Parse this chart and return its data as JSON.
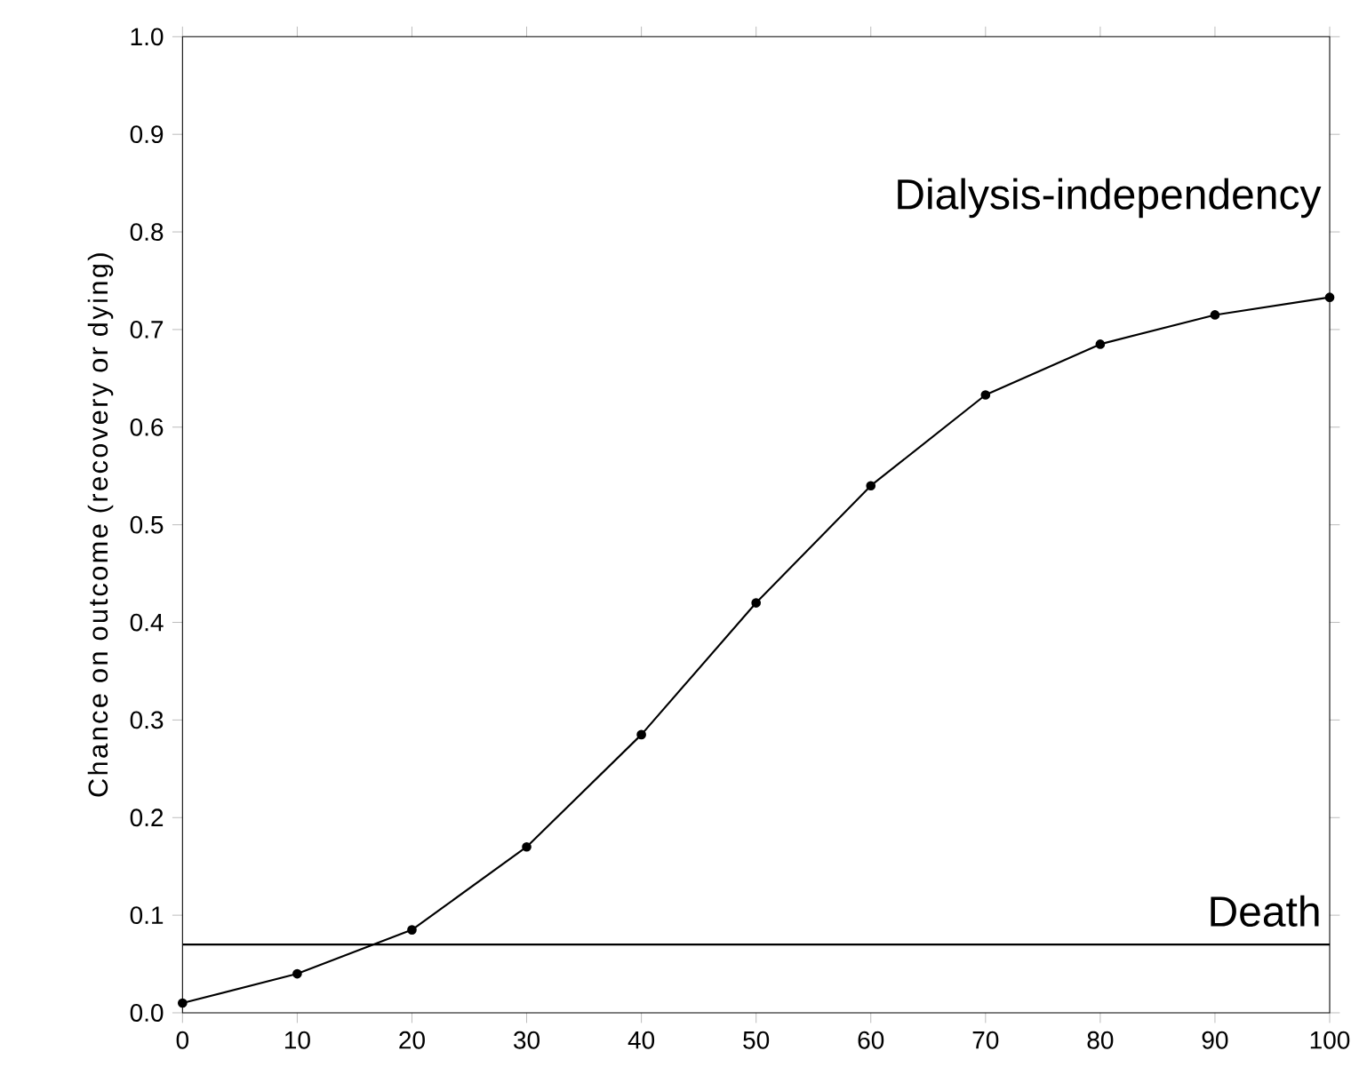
{
  "chart_data": {
    "type": "line",
    "ylabel": "Chance on outcome (recovery or dying)",
    "x": [
      0,
      10,
      20,
      30,
      40,
      50,
      60,
      70,
      80,
      90,
      100
    ],
    "series": [
      {
        "name": "Dialysis-independency",
        "color": "#000000",
        "marker": "circle",
        "values": [
          0.01,
          0.04,
          0.085,
          0.17,
          0.285,
          0.42,
          0.54,
          0.633,
          0.685,
          0.715,
          0.733
        ]
      },
      {
        "name": "Death",
        "color": "#000000",
        "marker": "none",
        "values": [
          0.07,
          0.07,
          0.07,
          0.07,
          0.07,
          0.07,
          0.07,
          0.07,
          0.07,
          0.07,
          0.07
        ]
      }
    ],
    "xlim": [
      0,
      100
    ],
    "ylim": [
      0,
      1
    ],
    "xticks": [
      0,
      10,
      20,
      30,
      40,
      50,
      60,
      70,
      80,
      90,
      100
    ],
    "yticks": [
      {
        "value": 0,
        "label": "0.0"
      },
      {
        "value": 0.1,
        "label": "0.1"
      },
      {
        "value": 0.2,
        "label": "0.2"
      },
      {
        "value": 0.3,
        "label": "0.3"
      },
      {
        "value": 0.4,
        "label": "0.4"
      },
      {
        "value": 0.5,
        "label": "0.5"
      },
      {
        "value": 0.6,
        "label": "0.6"
      },
      {
        "value": 0.7,
        "label": "0.7"
      },
      {
        "value": 0.8,
        "label": "0.8"
      },
      {
        "value": 0.9,
        "label": "0.9"
      },
      {
        "value": 1,
        "label": "1.0"
      }
    ],
    "grid": false,
    "line_style": "solid"
  }
}
